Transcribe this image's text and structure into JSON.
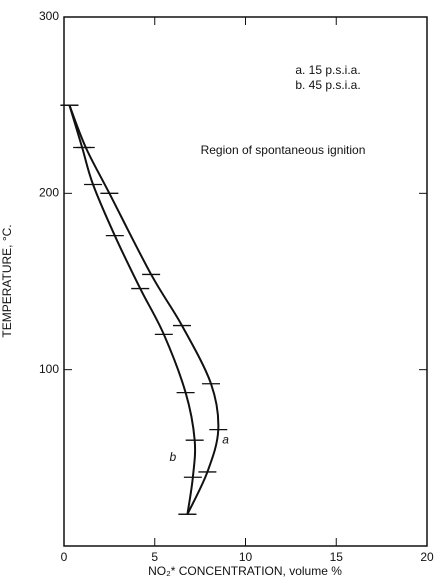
{
  "chart_data": {
    "type": "line",
    "x_label": "NO₂* CONCENTRATION, volume %",
    "y_label": "TEMPERATURE, °C.",
    "annotations": [
      "a. 15 p.s.i.a.",
      "b. 45 p.s.i.a.",
      "Region of spontaneous ignition"
    ],
    "series": [
      {
        "name": "a",
        "color": "#111111",
        "x": [
          0.3,
          1.2,
          2.5,
          4.8,
          6.5,
          8.1,
          8.5,
          7.9,
          6.8
        ],
        "values": [
          250,
          226,
          200,
          154,
          125,
          92,
          66,
          42,
          18
        ]
      },
      {
        "name": "b",
        "color": "#111111",
        "x": [
          0.3,
          1.0,
          1.6,
          2.8,
          4.2,
          5.5,
          6.7,
          7.2,
          7.1,
          6.8
        ],
        "values": [
          250,
          226,
          205,
          176,
          146,
          120,
          87,
          60,
          39,
          18
        ]
      }
    ],
    "xlim": [
      0,
      20
    ],
    "xticks": [
      0,
      5,
      10,
      15,
      20
    ],
    "ylim": [
      0,
      300
    ],
    "yticks": [
      100,
      200,
      300
    ]
  }
}
